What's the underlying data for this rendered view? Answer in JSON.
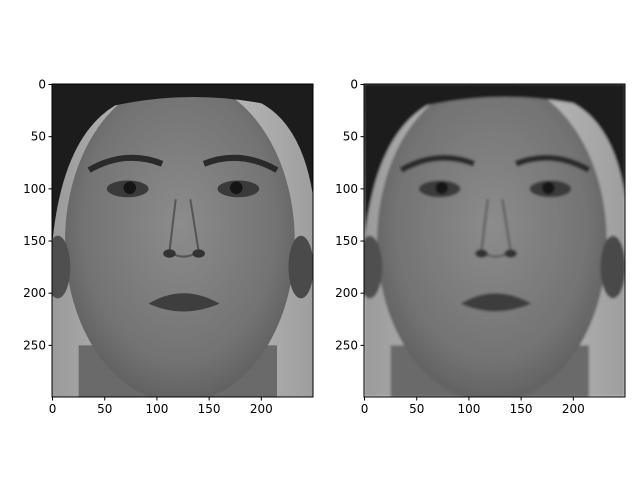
{
  "chart_data": [
    {
      "type": "image",
      "image_content": "grayscale frontal face photograph (original)",
      "colormap": "gray",
      "image_shape": [
        300,
        250
      ],
      "xlim": [
        -0.5,
        249.5
      ],
      "ylim": [
        299.5,
        -0.5
      ],
      "y_inverted": true,
      "xticks": [
        0,
        50,
        100,
        150,
        200
      ],
      "yticks": [
        0,
        50,
        100,
        150,
        200,
        250
      ],
      "xtick_labels": [
        "0",
        "50",
        "100",
        "150",
        "200"
      ],
      "ytick_labels": [
        "0",
        "50",
        "100",
        "150",
        "200",
        "250"
      ],
      "title": "",
      "xlabel": "",
      "ylabel": "",
      "grid": false
    },
    {
      "type": "image",
      "image_content": "grayscale frontal face photograph (processed / slightly smoothed version)",
      "colormap": "gray",
      "image_shape": [
        300,
        250
      ],
      "xlim": [
        -0.5,
        249.5
      ],
      "ylim": [
        299.5,
        -0.5
      ],
      "y_inverted": true,
      "xticks": [
        0,
        50,
        100,
        150,
        200
      ],
      "yticks": [
        0,
        50,
        100,
        150,
        200,
        250
      ],
      "xtick_labels": [
        "0",
        "50",
        "100",
        "150",
        "200"
      ],
      "ytick_labels": [
        "0",
        "50",
        "100",
        "150",
        "200",
        "250"
      ],
      "title": "",
      "xlabel": "",
      "ylabel": "",
      "grid": false
    }
  ],
  "colors": {
    "background": "#ffffff",
    "axes": "#000000",
    "backdrop": "#b5b5b5",
    "skin_light": "#8a8a8a",
    "skin_mid": "#6b6b6b",
    "hair": "#1c1c1c",
    "features": "#2a2a2a"
  }
}
